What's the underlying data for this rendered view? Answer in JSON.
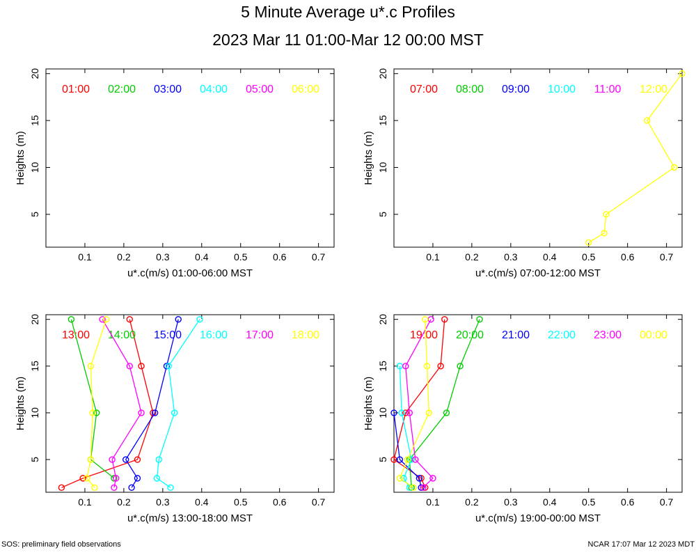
{
  "title": "5 Minute Average u*.c Profiles",
  "subtitle": "2023 Mar 11 01:00-Mar 12 00:00 MST",
  "footer_left": "SOS: preliminary field observations",
  "footer_right": "NCAR 17:07 Mar 12 2023 MDT",
  "chart_data": [
    {
      "type": "line",
      "xlabel": "u*.c(m/s) 01:00-06:00 MST",
      "ylabel": "Heights (m)",
      "xlim": [
        0,
        0.74
      ],
      "ylim": [
        1.5,
        20.5
      ],
      "xticks": [
        0.1,
        0.2,
        0.3,
        0.4,
        0.5,
        0.6,
        0.7
      ],
      "yticks": [
        5,
        10,
        15,
        20
      ],
      "legend_position": "top",
      "series": [
        {
          "name": "01:00",
          "color": "#ff0000",
          "points": []
        },
        {
          "name": "02:00",
          "color": "#00cc00",
          "points": []
        },
        {
          "name": "03:00",
          "color": "#0000ff",
          "points": []
        },
        {
          "name": "04:00",
          "color": "#00ffff",
          "points": []
        },
        {
          "name": "05:00",
          "color": "#ff00ff",
          "points": []
        },
        {
          "name": "06:00",
          "color": "#ffff00",
          "points": []
        }
      ]
    },
    {
      "type": "line",
      "xlabel": "u*.c(m/s) 07:00-12:00 MST",
      "ylabel": "Heights (m)",
      "xlim": [
        0,
        0.74
      ],
      "ylim": [
        1.5,
        20.5
      ],
      "xticks": [
        0.1,
        0.2,
        0.3,
        0.4,
        0.5,
        0.6,
        0.7
      ],
      "yticks": [
        5,
        10,
        15,
        20
      ],
      "legend_position": "top",
      "series": [
        {
          "name": "07:00",
          "color": "#ff0000",
          "points": []
        },
        {
          "name": "08:00",
          "color": "#00cc00",
          "points": []
        },
        {
          "name": "09:00",
          "color": "#0000ff",
          "points": []
        },
        {
          "name": "10:00",
          "color": "#00ffff",
          "points": []
        },
        {
          "name": "11:00",
          "color": "#ff00ff",
          "points": []
        },
        {
          "name": "12:00",
          "color": "#ffff00",
          "points": [
            [
              0.5,
              2
            ],
            [
              0.54,
              3
            ],
            [
              0.545,
              5
            ],
            [
              0.72,
              10
            ],
            [
              0.65,
              15
            ],
            [
              0.74,
              20
            ]
          ]
        }
      ]
    },
    {
      "type": "line",
      "xlabel": "u*.c(m/s) 13:00-18:00 MST",
      "ylabel": "Heights (m)",
      "xlim": [
        0,
        0.74
      ],
      "ylim": [
        1.5,
        20.5
      ],
      "xticks": [
        0.1,
        0.2,
        0.3,
        0.4,
        0.5,
        0.6,
        0.7
      ],
      "yticks": [
        5,
        10,
        15,
        20
      ],
      "legend_position": "top",
      "series": [
        {
          "name": "13:00",
          "color": "#ff0000",
          "points": [
            [
              0.04,
              2
            ],
            [
              0.095,
              3
            ],
            [
              0.235,
              5
            ],
            [
              0.275,
              10
            ],
            [
              0.245,
              15
            ],
            [
              0.215,
              20
            ]
          ]
        },
        {
          "name": "14:00",
          "color": "#00cc00",
          "points": [
            [
              0.175,
              3
            ],
            [
              0.115,
              5
            ],
            [
              0.13,
              10
            ],
            [
              0.065,
              20
            ]
          ]
        },
        {
          "name": "15:00",
          "color": "#0000ff",
          "points": [
            [
              0.22,
              2
            ],
            [
              0.235,
              3
            ],
            [
              0.205,
              5
            ],
            [
              0.28,
              10
            ],
            [
              0.31,
              15
            ],
            [
              0.34,
              20
            ]
          ]
        },
        {
          "name": "16:00",
          "color": "#00ffff",
          "points": [
            [
              0.32,
              2
            ],
            [
              0.285,
              3
            ],
            [
              0.29,
              5
            ],
            [
              0.33,
              10
            ],
            [
              0.315,
              15
            ],
            [
              0.395,
              20
            ]
          ]
        },
        {
          "name": "17:00",
          "color": "#ff00ff",
          "points": [
            [
              0.175,
              2
            ],
            [
              0.18,
              3
            ],
            [
              0.17,
              5
            ],
            [
              0.245,
              10
            ],
            [
              0.215,
              15
            ],
            [
              0.145,
              20
            ]
          ]
        },
        {
          "name": "18:00",
          "color": "#ffff00",
          "points": [
            [
              0.125,
              2
            ],
            [
              0.105,
              3
            ],
            [
              0.115,
              5
            ],
            [
              0.12,
              10
            ],
            [
              0.115,
              15
            ],
            [
              0.155,
              20
            ]
          ]
        }
      ]
    },
    {
      "type": "line",
      "xlabel": "u*.c(m/s) 19:00-00:00 MST",
      "ylabel": "Heights (m)",
      "xlim": [
        0,
        0.74
      ],
      "ylim": [
        1.5,
        20.5
      ],
      "xticks": [
        0.1,
        0.2,
        0.3,
        0.4,
        0.5,
        0.6,
        0.7
      ],
      "yticks": [
        5,
        10,
        15,
        20
      ],
      "legend_position": "top",
      "series": [
        {
          "name": "19:00",
          "color": "#ff0000",
          "points": [
            [
              0.08,
              2
            ],
            [
              0.07,
              3
            ],
            [
              0.0,
              5
            ],
            [
              0.03,
              10
            ],
            [
              0.12,
              15
            ],
            [
              0.13,
              20
            ]
          ]
        },
        {
          "name": "20:00",
          "color": "#00cc00",
          "points": [
            [
              0.045,
              2
            ],
            [
              0.04,
              5
            ],
            [
              0.135,
              10
            ],
            [
              0.17,
              15
            ],
            [
              0.22,
              20
            ]
          ]
        },
        {
          "name": "21:00",
          "color": "#0000ff",
          "points": [
            [
              0.07,
              2
            ],
            [
              0.065,
              3
            ],
            [
              0.015,
              5
            ],
            [
              0.0,
              10
            ]
          ]
        },
        {
          "name": "22:00",
          "color": "#00ffff",
          "points": [
            [
              0.04,
              2
            ],
            [
              0.025,
              3
            ],
            [
              0.045,
              5
            ],
            [
              0.02,
              10
            ],
            [
              0.015,
              15
            ]
          ]
        },
        {
          "name": "23:00",
          "color": "#ff00ff",
          "points": [
            [
              0.075,
              2
            ],
            [
              0.1,
              3
            ],
            [
              0.055,
              5
            ],
            [
              0.04,
              10
            ],
            [
              0.03,
              15
            ],
            [
              0.095,
              20
            ]
          ]
        },
        {
          "name": "00:00",
          "color": "#ffff00",
          "points": [
            [
              0.05,
              2
            ],
            [
              0.015,
              3
            ],
            [
              0.035,
              5
            ],
            [
              0.09,
              10
            ],
            [
              0.085,
              15
            ],
            [
              0.08,
              20
            ]
          ]
        }
      ]
    }
  ]
}
